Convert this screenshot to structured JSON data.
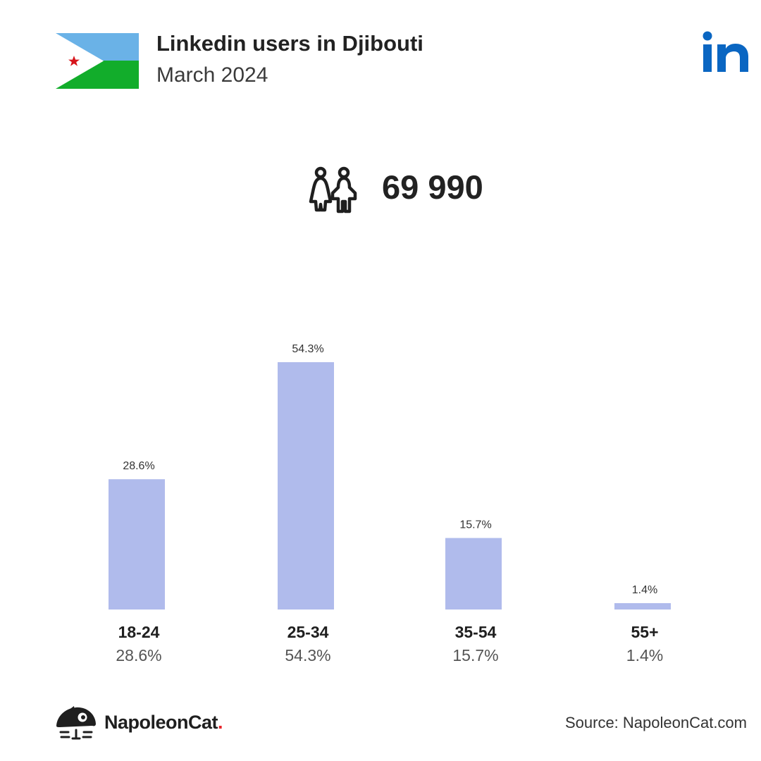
{
  "header": {
    "title": "Linkedin users in Djibouti",
    "subtitle": "March 2024"
  },
  "total_users": "69 990",
  "colors": {
    "bar": "#b0bbec",
    "linkedin_blue": "#0a66c2",
    "flag_blue": "#6ab2e7",
    "flag_green": "#12ad2b",
    "flag_star": "#d7141a"
  },
  "icons": [
    "djibouti-flag-icon",
    "linkedin-logo-icon",
    "users-icon",
    "napoleoncat-logo-icon"
  ],
  "chart_data": {
    "type": "bar",
    "categories": [
      "18-24",
      "25-34",
      "35-54",
      "55+"
    ],
    "values": [
      28.6,
      54.3,
      15.7,
      1.4
    ],
    "value_labels": [
      "28.6%",
      "54.3%",
      "15.7%",
      "1.4%"
    ],
    "ylim": [
      0,
      54.3
    ],
    "grid": false
  },
  "footer": {
    "brand_name": "NapoleonCat",
    "brand_dot": ".",
    "source": "Source: NapoleonCat.com"
  }
}
